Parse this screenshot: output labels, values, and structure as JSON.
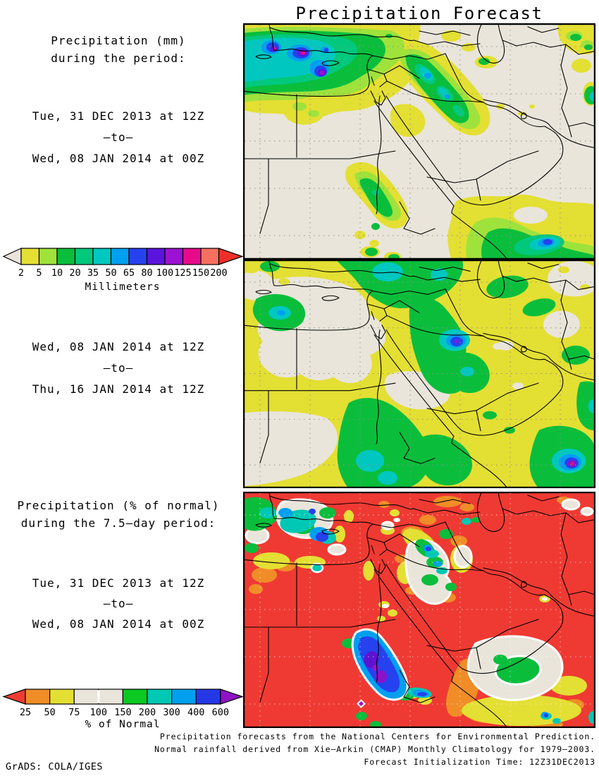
{
  "title": "Precipitation Forecast",
  "panels": {
    "panel1": {
      "heading_line1": "Precipitation (mm)",
      "heading_line2": "during the period:",
      "period_start": "Tue, 31 DEC 2013 at 12Z",
      "period_sep": "–to–",
      "period_end": "Wed, 08 JAN 2014 at 00Z"
    },
    "panel2": {
      "period_start": "Wed, 08 JAN 2014 at 12Z",
      "period_sep": "–to–",
      "period_end": "Thu, 16 JAN 2014 at 12Z"
    },
    "panel3": {
      "heading_line1": "Precipitation (% of normal)",
      "heading_line2": "during the 7.5–day period:",
      "period_start": "Tue, 31 DEC 2013 at 12Z",
      "period_sep": "–to–",
      "period_end": "Wed, 08 JAN 2014 at 00Z"
    }
  },
  "colorbars": {
    "mm": {
      "unit_label": "Millimeters",
      "tick_labels": [
        "2",
        "5",
        "10",
        "20",
        "35",
        "50",
        "65",
        "80",
        "100",
        "125",
        "150",
        "200"
      ],
      "segment_colors": [
        "#e4df33",
        "#9fe23c",
        "#0abe3c",
        "#00c87d",
        "#00c8c0",
        "#009ff0",
        "#2641ee",
        "#5a14dc",
        "#9b12d2",
        "#e60b8a",
        "#f5705f"
      ],
      "left_arrow_color": "#e9e5da",
      "right_arrow_color": "#ee2e28"
    },
    "pct": {
      "unit_label": "% of Normal",
      "tick_labels": [
        "25",
        "50",
        "75",
        "100",
        "150",
        "200",
        "300",
        "400",
        "600"
      ],
      "segment_colors": [
        "#f08d27",
        "#e4df33",
        "#e9e5da",
        "#e9e5da",
        "#0bc822",
        "#00c8b4",
        "#009ff0",
        "#2438e8"
      ],
      "left_arrow_color": "#ee3c34",
      "right_arrow_color": "#9012c8",
      "white_divider_tick": "100"
    }
  },
  "palette": {
    "map_background": "#e9e5da",
    "below_normal_red": "#ef3a33",
    "boundary_black": "#000000",
    "grid_gray": "#8f8f87"
  },
  "footer": {
    "line1": "Precipitation forecasts from the National Centers for Environmental Prediction.",
    "line2": "Normal rainfall derived from Xie–Arkin (CMAP) Monthly Climatology for 1979–2003.",
    "line3": "Forecast Initialization Time: 12Z31DEC2013"
  },
  "attribution": "GrADS: COLA/IGES"
}
